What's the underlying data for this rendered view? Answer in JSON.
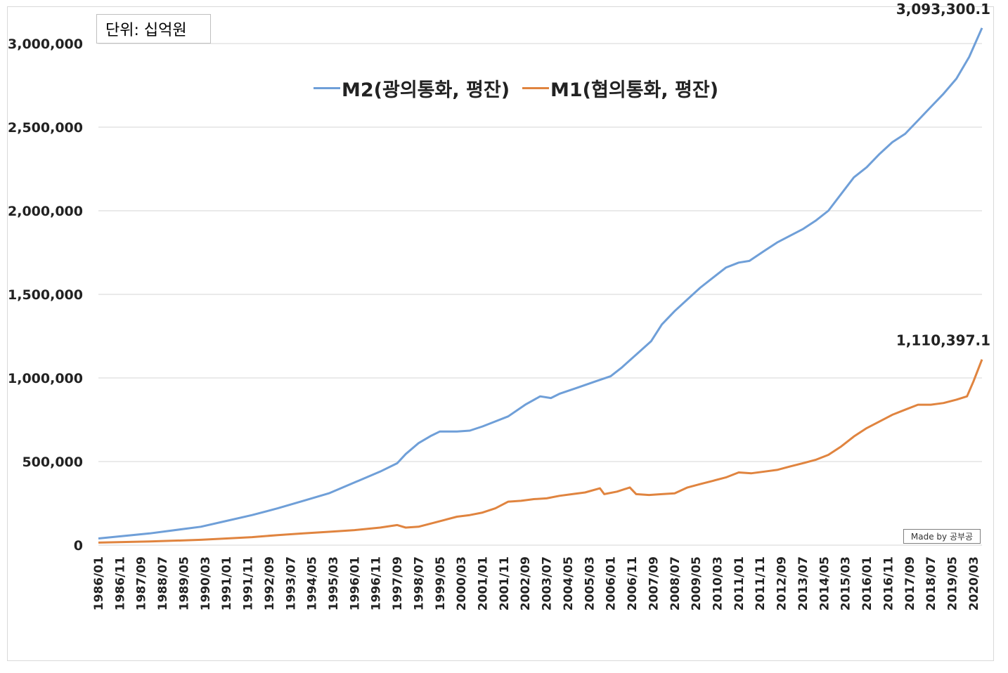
{
  "chart_data": {
    "type": "line",
    "unit_note": "단위: 십억원",
    "watermark": "Made by 공부공",
    "y_ticks": [
      "0",
      "500,000",
      "1,000,000",
      "1,500,000",
      "2,000,000",
      "2,500,000",
      "3,000,000"
    ],
    "ylim": [
      0,
      3000000
    ],
    "x_labels": [
      "1986/01",
      "1986/11",
      "1987/09",
      "1988/07",
      "1989/05",
      "1990/03",
      "1991/01",
      "1991/11",
      "1992/09",
      "1993/07",
      "1994/05",
      "1995/03",
      "1996/01",
      "1996/11",
      "1997/09",
      "1998/07",
      "1999/05",
      "2000/03",
      "2001/01",
      "2001/11",
      "2002/09",
      "2003/07",
      "2004/05",
      "2005/03",
      "2006/01",
      "2006/11",
      "2007/09",
      "2008/07",
      "2009/05",
      "2010/03",
      "2011/01",
      "2011/11",
      "2012/09",
      "2013/07",
      "2014/05",
      "2015/03",
      "2016/01",
      "2016/11",
      "2017/09",
      "2018/07",
      "2019/05",
      "2020/03"
    ],
    "x_range": [
      "1986/01",
      "2020/07"
    ],
    "grid": true,
    "legend_position": "top-center",
    "series": [
      {
        "name": "M2(광의통화, 평잔)",
        "color": "#6f9fd8",
        "end_label": "3,093,300.1",
        "points": [
          [
            "1986/01",
            40000
          ],
          [
            "1988/01",
            70000
          ],
          [
            "1990/01",
            110000
          ],
          [
            "1991/01",
            145000
          ],
          [
            "1992/01",
            180000
          ],
          [
            "1993/01",
            220000
          ],
          [
            "1994/01",
            265000
          ],
          [
            "1995/01",
            310000
          ],
          [
            "1996/01",
            375000
          ],
          [
            "1997/01",
            440000
          ],
          [
            "1997/09",
            490000
          ],
          [
            "1998/01",
            545000
          ],
          [
            "1998/07",
            610000
          ],
          [
            "1999/01",
            655000
          ],
          [
            "1999/05",
            680000
          ],
          [
            "2000/01",
            680000
          ],
          [
            "2000/07",
            685000
          ],
          [
            "2001/01",
            710000
          ],
          [
            "2001/07",
            740000
          ],
          [
            "2002/01",
            770000
          ],
          [
            "2002/09",
            840000
          ],
          [
            "2003/04",
            890000
          ],
          [
            "2003/09",
            880000
          ],
          [
            "2004/01",
            905000
          ],
          [
            "2004/09",
            940000
          ],
          [
            "2005/06",
            980000
          ],
          [
            "2006/01",
            1010000
          ],
          [
            "2006/06",
            1060000
          ],
          [
            "2007/01",
            1140000
          ],
          [
            "2007/08",
            1220000
          ],
          [
            "2008/01",
            1320000
          ],
          [
            "2008/07",
            1400000
          ],
          [
            "2009/01",
            1470000
          ],
          [
            "2009/07",
            1540000
          ],
          [
            "2010/01",
            1600000
          ],
          [
            "2010/07",
            1660000
          ],
          [
            "2011/01",
            1690000
          ],
          [
            "2011/06",
            1700000
          ],
          [
            "2012/01",
            1760000
          ],
          [
            "2012/07",
            1810000
          ],
          [
            "2013/01",
            1850000
          ],
          [
            "2013/07",
            1890000
          ],
          [
            "2014/01",
            1940000
          ],
          [
            "2014/07",
            2000000
          ],
          [
            "2015/01",
            2100000
          ],
          [
            "2015/07",
            2200000
          ],
          [
            "2016/01",
            2260000
          ],
          [
            "2016/07",
            2340000
          ],
          [
            "2017/01",
            2410000
          ],
          [
            "2017/07",
            2460000
          ],
          [
            "2018/01",
            2540000
          ],
          [
            "2018/07",
            2620000
          ],
          [
            "2019/01",
            2700000
          ],
          [
            "2019/07",
            2790000
          ],
          [
            "2020/01",
            2920000
          ],
          [
            "2020/07",
            3093300.1
          ]
        ]
      },
      {
        "name": "M1(협의통화, 평잔)",
        "color": "#e0843f",
        "end_label": "1,110,397.1",
        "points": [
          [
            "1986/01",
            15000
          ],
          [
            "1988/01",
            22000
          ],
          [
            "1990/01",
            32000
          ],
          [
            "1991/01",
            40000
          ],
          [
            "1992/01",
            48000
          ],
          [
            "1993/01",
            60000
          ],
          [
            "1994/01",
            70000
          ],
          [
            "1995/01",
            80000
          ],
          [
            "1996/01",
            90000
          ],
          [
            "1997/01",
            105000
          ],
          [
            "1997/09",
            120000
          ],
          [
            "1998/01",
            105000
          ],
          [
            "1998/07",
            110000
          ],
          [
            "1999/01",
            130000
          ],
          [
            "1999/07",
            150000
          ],
          [
            "2000/01",
            170000
          ],
          [
            "2000/07",
            180000
          ],
          [
            "2001/01",
            195000
          ],
          [
            "2001/07",
            220000
          ],
          [
            "2002/01",
            260000
          ],
          [
            "2002/07",
            265000
          ],
          [
            "2003/01",
            275000
          ],
          [
            "2003/07",
            280000
          ],
          [
            "2004/01",
            295000
          ],
          [
            "2004/07",
            305000
          ],
          [
            "2005/01",
            315000
          ],
          [
            "2005/08",
            340000
          ],
          [
            "2005/10",
            305000
          ],
          [
            "2006/04",
            320000
          ],
          [
            "2006/10",
            345000
          ],
          [
            "2007/01",
            305000
          ],
          [
            "2007/07",
            300000
          ],
          [
            "2008/01",
            305000
          ],
          [
            "2008/07",
            310000
          ],
          [
            "2009/01",
            345000
          ],
          [
            "2009/07",
            365000
          ],
          [
            "2010/01",
            385000
          ],
          [
            "2010/07",
            405000
          ],
          [
            "2011/01",
            435000
          ],
          [
            "2011/07",
            430000
          ],
          [
            "2012/01",
            440000
          ],
          [
            "2012/07",
            450000
          ],
          [
            "2013/01",
            470000
          ],
          [
            "2013/07",
            490000
          ],
          [
            "2014/01",
            510000
          ],
          [
            "2014/07",
            540000
          ],
          [
            "2015/01",
            590000
          ],
          [
            "2015/07",
            650000
          ],
          [
            "2016/01",
            700000
          ],
          [
            "2016/07",
            740000
          ],
          [
            "2017/01",
            780000
          ],
          [
            "2017/07",
            810000
          ],
          [
            "2018/01",
            840000
          ],
          [
            "2018/07",
            840000
          ],
          [
            "2019/01",
            850000
          ],
          [
            "2019/07",
            870000
          ],
          [
            "2019/12",
            890000
          ],
          [
            "2020/03",
            980000
          ],
          [
            "2020/07",
            1110397.1
          ]
        ]
      }
    ]
  }
}
